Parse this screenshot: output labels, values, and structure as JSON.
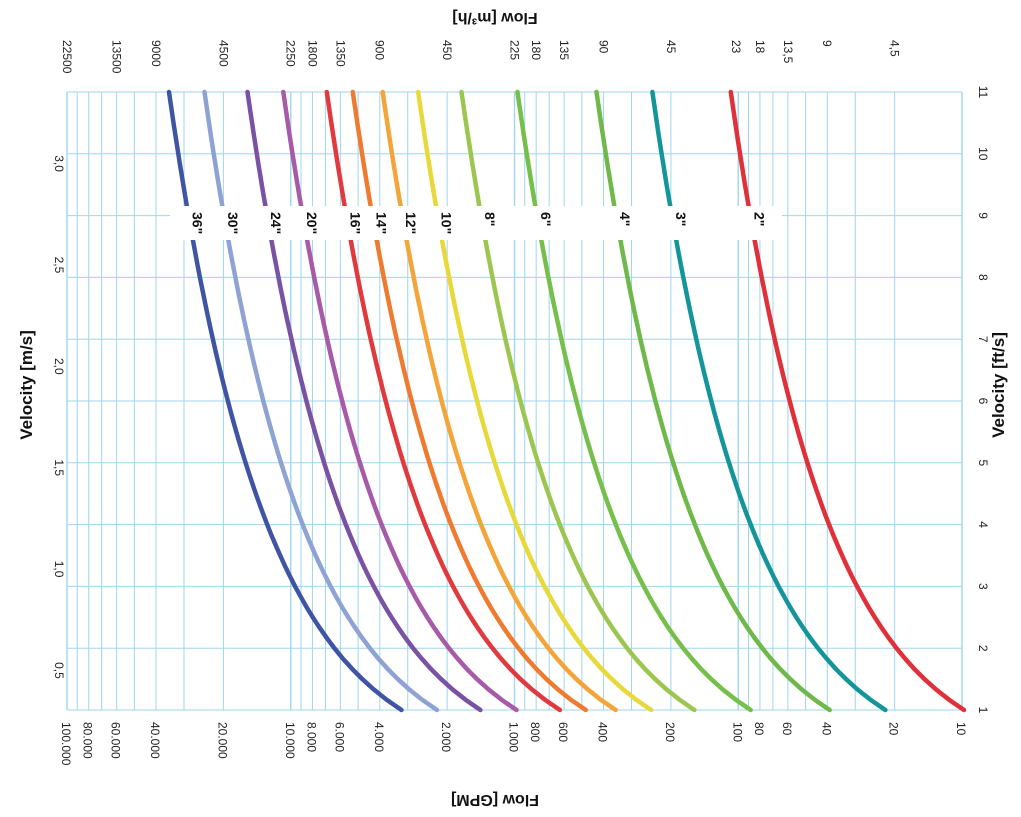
{
  "chart_data": {
    "type": "line",
    "title": "",
    "orientation": "rotated 90 degrees clockwise",
    "left_axis": {
      "label": "Velocity [m/s]",
      "ticks": [
        "0,5",
        "1,0",
        "1,5",
        "2,0",
        "2,5",
        "3,0"
      ]
    },
    "right_axis": {
      "label": "Velocity [ft/s]",
      "range": [
        1,
        11
      ],
      "ticks": [
        "1",
        "2",
        "3",
        "4",
        "5",
        "6",
        "7",
        "8",
        "9",
        "10",
        "11"
      ]
    },
    "bottom_axis": {
      "label": "Flow [GPM]",
      "scale": "log",
      "range": [
        10,
        100000
      ],
      "ticks": [
        "100.000",
        "80.000",
        "60.000",
        "40.000",
        "20.000",
        "10.000",
        "8.000",
        "6.000",
        "4.000",
        "2.000",
        "1.000",
        "800",
        "600",
        "400",
        "200",
        "100",
        "80",
        "60",
        "40",
        "20",
        "10"
      ]
    },
    "top_axis": {
      "label": "Flow [m³/h]",
      "ticks": [
        "22500",
        "13500",
        "9000",
        "4500",
        "2250",
        "1800",
        "1350",
        "900",
        "450",
        "225",
        "180",
        "135",
        "90",
        "45",
        "23",
        "18",
        "13,5",
        "9",
        "4,5"
      ]
    },
    "series": [
      {
        "name": "36\"",
        "color": "#3f55a3",
        "flow_gpm": [
          3200,
          35000
        ]
      },
      {
        "name": "30\"",
        "color": "#8ea3d4",
        "flow_gpm": [
          2220,
          24300
        ]
      },
      {
        "name": "24\"",
        "color": "#7952a3",
        "flow_gpm": [
          1420,
          15600
        ]
      },
      {
        "name": "20\"",
        "color": "#a65aa8",
        "flow_gpm": [
          980,
          10800
        ]
      },
      {
        "name": "16\"",
        "color": "#e03a3e",
        "flow_gpm": [
          627,
          6900
        ]
      },
      {
        "name": "14\"",
        "color": "#ef7b31",
        "flow_gpm": [
          480,
          5280
        ]
      },
      {
        "name": "12\"",
        "color": "#f3a53a",
        "flow_gpm": [
          353,
          3880
        ]
      },
      {
        "name": "10\"",
        "color": "#e8d93a",
        "flow_gpm": [
          245,
          2695
        ]
      },
      {
        "name": "8\"",
        "color": "#9dc651",
        "flow_gpm": [
          157,
          1725
        ]
      },
      {
        "name": "6\"",
        "color": "#75bf4a",
        "flow_gpm": [
          88,
          970
        ]
      },
      {
        "name": "4\"",
        "color": "#6fb84a",
        "flow_gpm": [
          39,
          430
        ]
      },
      {
        "name": "3\"",
        "color": "#14959a",
        "flow_gpm": [
          22,
          242
        ]
      },
      {
        "name": "2\"",
        "color": "#e0303a",
        "flow_gpm": [
          9.8,
          108
        ]
      }
    ],
    "grid": true
  }
}
